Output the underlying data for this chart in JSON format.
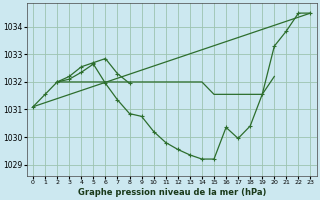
{
  "title": "Graphe pression niveau de la mer (hPa)",
  "bg_color": "#cce8f0",
  "grid_color": "#9dc4b0",
  "line_color": "#2d6e2d",
  "xlim": [
    -0.5,
    23.5
  ],
  "ylim": [
    1028.6,
    1034.85
  ],
  "yticks": [
    1029,
    1030,
    1031,
    1032,
    1033,
    1034
  ],
  "xticks": [
    0,
    1,
    2,
    3,
    4,
    5,
    6,
    7,
    8,
    9,
    10,
    11,
    12,
    13,
    14,
    15,
    16,
    17,
    18,
    19,
    20,
    21,
    22,
    23
  ],
  "curve_main": {
    "x": [
      0,
      1,
      2,
      3,
      4,
      5,
      6,
      7,
      8,
      9,
      10,
      11,
      12,
      13,
      14,
      15,
      16,
      17,
      18,
      19,
      20,
      21,
      22,
      23
    ],
    "y": [
      1031.1,
      1031.55,
      1032.0,
      1032.1,
      1032.35,
      1032.65,
      1031.95,
      1031.35,
      1030.85,
      1030.75,
      1030.2,
      1029.8,
      1029.55,
      1029.35,
      1029.2,
      1029.2,
      1030.35,
      1029.95,
      1030.4,
      1031.55,
      1033.3,
      1033.85,
      1034.5,
      1034.5
    ]
  },
  "curve_diagonal": {
    "x": [
      0,
      23
    ],
    "y": [
      1031.1,
      1034.5
    ]
  },
  "curve_bump": {
    "x": [
      2,
      3,
      4,
      5,
      6,
      7,
      8
    ],
    "y": [
      1032.0,
      1032.2,
      1032.55,
      1032.7,
      1032.85,
      1032.3,
      1031.95
    ]
  },
  "curve_flat": {
    "x": [
      2,
      3,
      4,
      5,
      6,
      7,
      8,
      9,
      10,
      11,
      12,
      13,
      14,
      15,
      16,
      17,
      18,
      19,
      20
    ],
    "y": [
      1032.0,
      1032.0,
      1032.0,
      1032.0,
      1032.0,
      1032.0,
      1032.0,
      1032.0,
      1032.0,
      1032.0,
      1032.0,
      1032.0,
      1032.0,
      1031.55,
      1031.55,
      1031.55,
      1031.55,
      1031.55,
      1032.2
    ]
  }
}
